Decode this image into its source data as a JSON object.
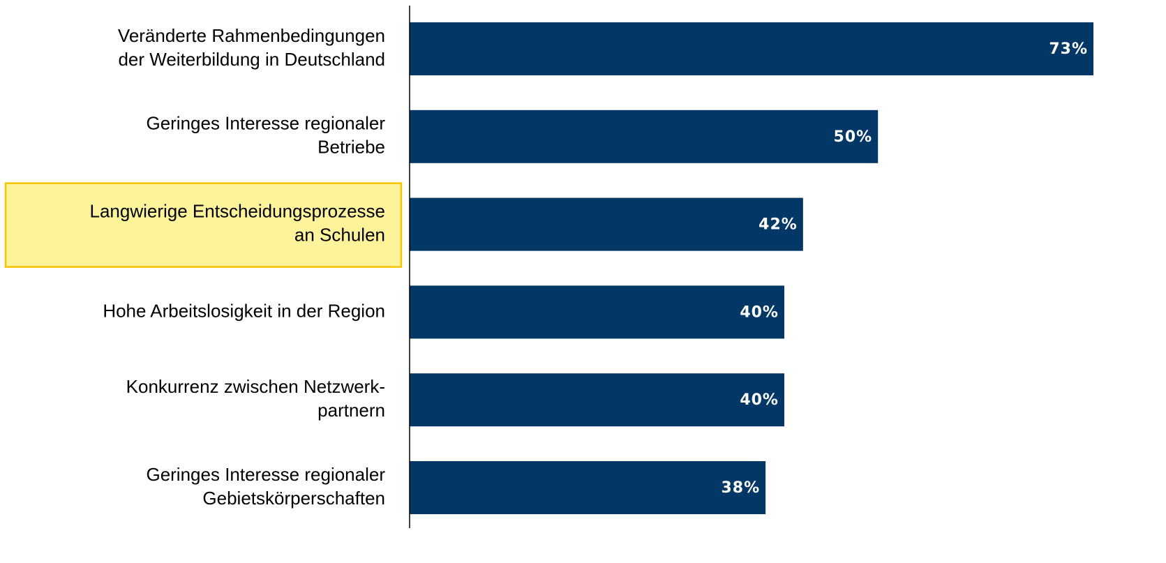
{
  "chart_data": {
    "type": "bar",
    "orientation": "horizontal",
    "categories": [
      [
        "Veränderte Rahmenbedingungen",
        "der Weiterbildung in Deutschland"
      ],
      [
        "Geringes Interesse regionaler",
        "Betriebe"
      ],
      [
        "Langwierige Entscheidungsprozesse",
        "an Schulen"
      ],
      [
        "Hohe Arbeitslosigkeit in der Region"
      ],
      [
        "Konkurrenz zwischen Netzwerk-",
        "partnern"
      ],
      [
        "Geringes Interesse regionaler",
        "Gebietskörperschaften"
      ]
    ],
    "values": [
      73,
      50,
      42,
      40,
      40,
      38
    ],
    "value_labels": [
      "73%",
      "50%",
      "42%",
      "40%",
      "40%",
      "38%"
    ],
    "color": "#033766",
    "highlight": {
      "index": 2,
      "color": "#fcf39b",
      "border": "#f5c400"
    }
  }
}
